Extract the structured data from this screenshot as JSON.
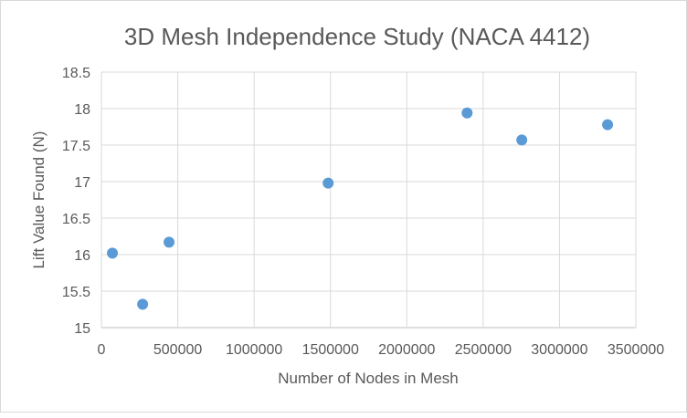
{
  "chart_data": {
    "type": "scatter",
    "title": "3D Mesh Independence  Study (NACA 4412)",
    "xlabel": "Number of Nodes in Mesh",
    "ylabel": "Lift Value Found (N)",
    "xlim": [
      0,
      3500000
    ],
    "ylim": [
      15,
      18.5
    ],
    "xticks": [
      "0",
      "500000",
      "1000000",
      "1500000",
      "2000000",
      "2500000",
      "3000000",
      "3500000"
    ],
    "yticks": [
      "15",
      "15.5",
      "16",
      "16.5",
      "17",
      "17.5",
      "18",
      "18.5"
    ],
    "grid": true,
    "marker_color": "#5b9bd5",
    "x": [
      72000,
      270000,
      443000,
      1485000,
      2395000,
      2753000,
      3315000
    ],
    "y": [
      16.02,
      15.32,
      16.17,
      16.98,
      17.94,
      17.57,
      17.78
    ]
  }
}
